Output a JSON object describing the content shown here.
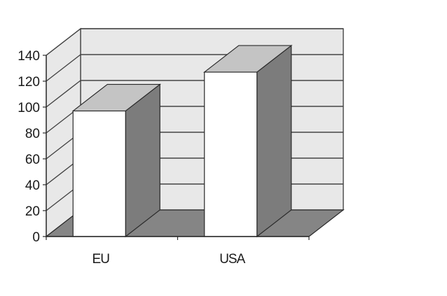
{
  "chart_data": {
    "type": "bar",
    "style": "3d",
    "categories": [
      "EU",
      "USA"
    ],
    "values": [
      97,
      127
    ],
    "title": "",
    "xlabel": "",
    "ylabel": "",
    "ylim": [
      0,
      140
    ],
    "yticks": [
      0,
      20,
      40,
      60,
      80,
      100,
      120,
      140
    ],
    "grid": true,
    "legend": "none",
    "colors": {
      "bar_front": "#ffffff",
      "bar_top": "#c4c4c4",
      "bar_side": "#7c7c7c",
      "back_wall": "#e8e8e8",
      "side_wall": "#e8e8e8",
      "floor": "#858585",
      "gridline": "#444444",
      "outline": "#2a2a2a"
    }
  }
}
